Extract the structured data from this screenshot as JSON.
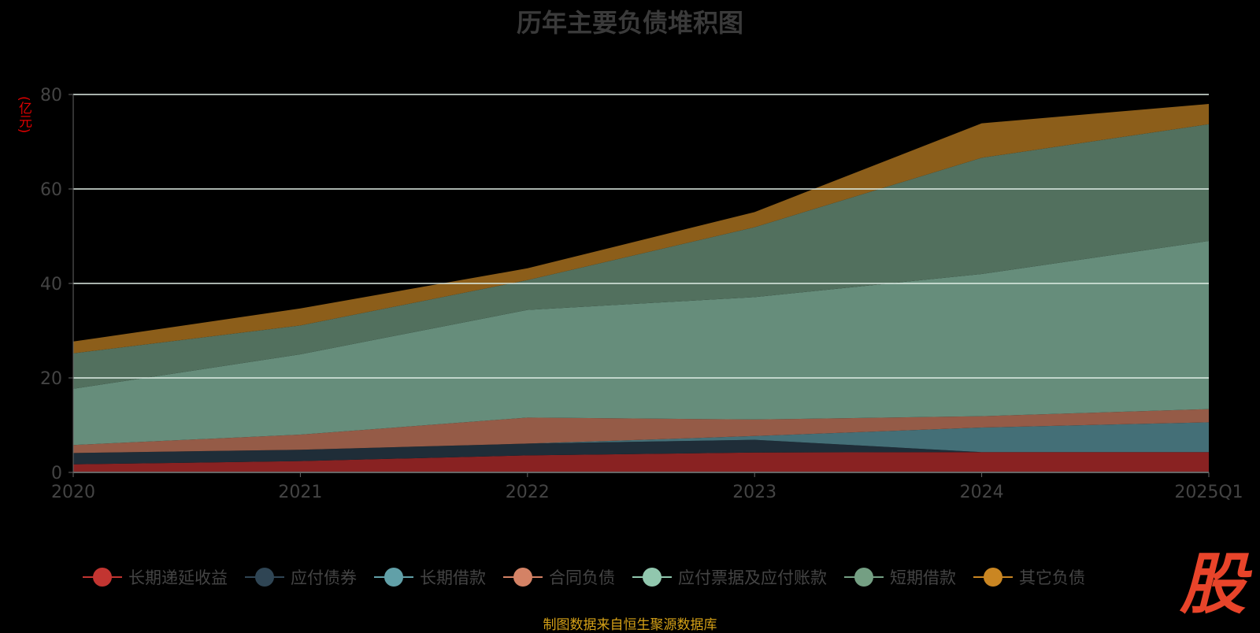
{
  "title": "历年主要负债堆积图",
  "unit": "(亿元)",
  "source": "制图数据来自恒生聚源数据库",
  "logo_text": "股",
  "chart_data": {
    "type": "area",
    "stacked": true,
    "title": "历年主要负债堆积图",
    "ylabel": "(亿元)",
    "ylim": [
      0,
      80
    ],
    "yticks": [
      0,
      20,
      40,
      60,
      80
    ],
    "categories": [
      "2020",
      "2021",
      "2022",
      "2023",
      "2024",
      "2025Q1"
    ],
    "legend_position": "bottom",
    "series": [
      {
        "name": "长期递延收益",
        "color": "#c23531",
        "fill": "#892222",
        "values": [
          1.7,
          2.4,
          3.6,
          4.2,
          4.3,
          4.3
        ]
      },
      {
        "name": "应付债券",
        "color": "#2f4554",
        "fill": "#1f2d38",
        "values": [
          2.4,
          2.4,
          2.5,
          2.7,
          0,
          0
        ]
      },
      {
        "name": "长期借款",
        "color": "#61a0a8",
        "fill": "#446f77",
        "values": [
          0,
          0,
          0,
          0.8,
          5.2,
          6.3
        ]
      },
      {
        "name": "合同负债",
        "color": "#d48265",
        "fill": "#955b47",
        "values": [
          1.7,
          3.2,
          5.5,
          3.5,
          2.4,
          2.8
        ]
      },
      {
        "name": "应付票据及应付账款",
        "color": "#91c7ae",
        "fill": "#668d7b",
        "values": [
          11.9,
          17.0,
          22.8,
          25.9,
          30.1,
          35.6
        ]
      },
      {
        "name": "短期借款",
        "color": "#749f83",
        "fill": "#52705e",
        "values": [
          7.5,
          6.1,
          6.3,
          14.8,
          24.6,
          24.7
        ]
      },
      {
        "name": "其它负债",
        "color": "#ca8622",
        "fill": "#8c5e1a",
        "values": [
          2.5,
          3.6,
          2.5,
          3.2,
          7.3,
          4.3
        ]
      }
    ]
  }
}
